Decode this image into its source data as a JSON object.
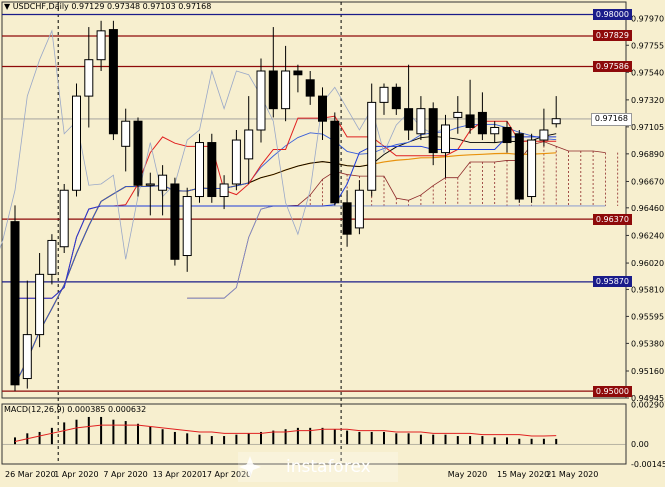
{
  "chart_data": [
    {
      "type": "candlestick",
      "title": "USDCHF,Daily",
      "ohlc_label": "0.97129 0.97348 0.97103 0.97168",
      "ylim": [
        0.94945,
        0.9802
      ],
      "price_ticks": [
        "0.97970",
        "0.97755",
        "0.97540",
        "0.97320",
        "0.97105",
        "0.96890",
        "0.96670",
        "0.96460",
        "0.96240",
        "0.96020",
        "0.95810",
        "0.95595",
        "0.95380",
        "0.95160",
        "0.94945"
      ],
      "level_lines": [
        {
          "label": "0.98000",
          "value": 0.98,
          "color": "#1A1C8A"
        },
        {
          "label": "0.97829",
          "value": 0.97829,
          "color": "#8E0A0A"
        },
        {
          "label": "0.97586",
          "value": 0.97586,
          "color": "#8E0A0A"
        },
        {
          "label": "0.96370",
          "value": 0.9637,
          "color": "#8E0A0A"
        },
        {
          "label": "0.95870",
          "value": 0.9587,
          "color": "#1A1C8A"
        },
        {
          "label": "0.95000",
          "value": 0.95,
          "color": "#8E0A0A"
        }
      ],
      "current_price": {
        "label": "0.97168",
        "value": 0.97168
      },
      "x_labels": [
        {
          "label": "26 Mar 2020",
          "index": 0
        },
        {
          "label": "1 Apr 2020",
          "index": 4
        },
        {
          "label": "7 Apr 2020",
          "index": 8
        },
        {
          "label": "13 Apr 2020",
          "index": 12
        },
        {
          "label": "17 Apr 2020",
          "index": 16
        },
        {
          "label": "May 2020",
          "index": 36
        },
        {
          "label": "15 May 2020",
          "index": 40
        },
        {
          "label": "21 May 2020",
          "index": 44
        }
      ],
      "candles": [
        {
          "o": 0.9635,
          "h": 0.9648,
          "l": 0.95,
          "c": 0.9505
        },
        {
          "o": 0.951,
          "h": 0.9588,
          "l": 0.9502,
          "c": 0.9545
        },
        {
          "o": 0.9545,
          "h": 0.961,
          "l": 0.9535,
          "c": 0.9593
        },
        {
          "o": 0.9593,
          "h": 0.9625,
          "l": 0.9585,
          "c": 0.962
        },
        {
          "o": 0.9615,
          "h": 0.9665,
          "l": 0.961,
          "c": 0.966
        },
        {
          "o": 0.966,
          "h": 0.9745,
          "l": 0.9655,
          "c": 0.9735
        },
        {
          "o": 0.9735,
          "h": 0.979,
          "l": 0.971,
          "c": 0.9764
        },
        {
          "o": 0.9764,
          "h": 0.9795,
          "l": 0.9755,
          "c": 0.9787
        },
        {
          "o": 0.9788,
          "h": 0.9795,
          "l": 0.97,
          "c": 0.9705
        },
        {
          "o": 0.9695,
          "h": 0.9725,
          "l": 0.9675,
          "c": 0.9715
        },
        {
          "o": 0.9715,
          "h": 0.9718,
          "l": 0.9655,
          "c": 0.9664
        },
        {
          "o": 0.9664,
          "h": 0.9674,
          "l": 0.964,
          "c": 0.9665
        },
        {
          "o": 0.966,
          "h": 0.968,
          "l": 0.964,
          "c": 0.9672
        },
        {
          "o": 0.9665,
          "h": 0.967,
          "l": 0.96,
          "c": 0.9605
        },
        {
          "o": 0.9608,
          "h": 0.9662,
          "l": 0.9595,
          "c": 0.9655
        },
        {
          "o": 0.9655,
          "h": 0.9705,
          "l": 0.965,
          "c": 0.9698
        },
        {
          "o": 0.9698,
          "h": 0.9705,
          "l": 0.965,
          "c": 0.9655
        },
        {
          "o": 0.9655,
          "h": 0.9672,
          "l": 0.9645,
          "c": 0.9665
        },
        {
          "o": 0.9665,
          "h": 0.9708,
          "l": 0.966,
          "c": 0.97
        },
        {
          "o": 0.9685,
          "h": 0.9735,
          "l": 0.9665,
          "c": 0.9708
        },
        {
          "o": 0.9708,
          "h": 0.9765,
          "l": 0.9698,
          "c": 0.9755
        },
        {
          "o": 0.9755,
          "h": 0.979,
          "l": 0.9718,
          "c": 0.9725
        },
        {
          "o": 0.9725,
          "h": 0.9775,
          "l": 0.9715,
          "c": 0.9755
        },
        {
          "o": 0.9755,
          "h": 0.976,
          "l": 0.9738,
          "c": 0.9752
        },
        {
          "o": 0.9748,
          "h": 0.9755,
          "l": 0.9728,
          "c": 0.9735
        },
        {
          "o": 0.9735,
          "h": 0.9742,
          "l": 0.97,
          "c": 0.9715
        },
        {
          "o": 0.9715,
          "h": 0.9722,
          "l": 0.9648,
          "c": 0.965
        },
        {
          "o": 0.965,
          "h": 0.966,
          "l": 0.9615,
          "c": 0.9625
        },
        {
          "o": 0.963,
          "h": 0.9668,
          "l": 0.9625,
          "c": 0.966
        },
        {
          "o": 0.966,
          "h": 0.9745,
          "l": 0.9655,
          "c": 0.973
        },
        {
          "o": 0.973,
          "h": 0.9745,
          "l": 0.972,
          "c": 0.9742
        },
        {
          "o": 0.9742,
          "h": 0.9745,
          "l": 0.972,
          "c": 0.9725
        },
        {
          "o": 0.9725,
          "h": 0.976,
          "l": 0.97,
          "c": 0.9708
        },
        {
          "o": 0.9705,
          "h": 0.9735,
          "l": 0.97,
          "c": 0.9725
        },
        {
          "o": 0.9725,
          "h": 0.973,
          "l": 0.968,
          "c": 0.969
        },
        {
          "o": 0.969,
          "h": 0.972,
          "l": 0.967,
          "c": 0.9712
        },
        {
          "o": 0.9718,
          "h": 0.9735,
          "l": 0.9705,
          "c": 0.9722
        },
        {
          "o": 0.972,
          "h": 0.9748,
          "l": 0.9705,
          "c": 0.971
        },
        {
          "o": 0.9722,
          "h": 0.9738,
          "l": 0.97,
          "c": 0.9705
        },
        {
          "o": 0.9705,
          "h": 0.9715,
          "l": 0.9698,
          "c": 0.971
        },
        {
          "o": 0.971,
          "h": 0.9715,
          "l": 0.969,
          "c": 0.9698
        },
        {
          "o": 0.9705,
          "h": 0.9708,
          "l": 0.965,
          "c": 0.9653
        },
        {
          "o": 0.9655,
          "h": 0.9705,
          "l": 0.965,
          "c": 0.97
        },
        {
          "o": 0.97,
          "h": 0.9725,
          "l": 0.9695,
          "c": 0.9708
        },
        {
          "o": 0.9713,
          "h": 0.9735,
          "l": 0.971,
          "c": 0.9717
        }
      ]
    },
    {
      "type": "bar",
      "title": "MACD(12,26,9) 0.000385 0.000632",
      "ylim": [
        -0.00145,
        0.00295
      ],
      "ticks": [
        "0.002907",
        "0.00",
        "-0.001450"
      ],
      "histogram": [
        0.0005,
        0.0008,
        0.0009,
        0.0012,
        0.0016,
        0.0018,
        0.002,
        0.002,
        0.0018,
        0.0017,
        0.0015,
        0.0013,
        0.0011,
        0.0009,
        0.0008,
        0.0007,
        0.0006,
        0.0006,
        0.0007,
        0.0008,
        0.0009,
        0.001,
        0.0011,
        0.0012,
        0.0012,
        0.0012,
        0.0011,
        0.001,
        0.0009,
        0.0009,
        0.0009,
        0.0008,
        0.0008,
        0.0007,
        0.0007,
        0.0007,
        0.0006,
        0.0006,
        0.0006,
        0.0005,
        0.0005,
        0.0004,
        0.0004,
        0.0004,
        0.00039
      ],
      "signal": [
        0.0002,
        0.0004,
        0.0006,
        0.0008,
        0.001,
        0.0012,
        0.0013,
        0.0014,
        0.0014,
        0.0014,
        0.0014,
        0.0013,
        0.0012,
        0.0011,
        0.001,
        0.0009,
        0.0009,
        0.0008,
        0.0008,
        0.0008,
        0.0008,
        0.0009,
        0.0009,
        0.001,
        0.001,
        0.0011,
        0.0011,
        0.0011,
        0.001,
        0.001,
        0.001,
        0.0009,
        0.0009,
        0.0009,
        0.0008,
        0.0008,
        0.0008,
        0.0008,
        0.0007,
        0.0007,
        0.0007,
        0.0007,
        0.0006,
        0.0006,
        0.00063
      ]
    }
  ],
  "watermark": "instaforex"
}
